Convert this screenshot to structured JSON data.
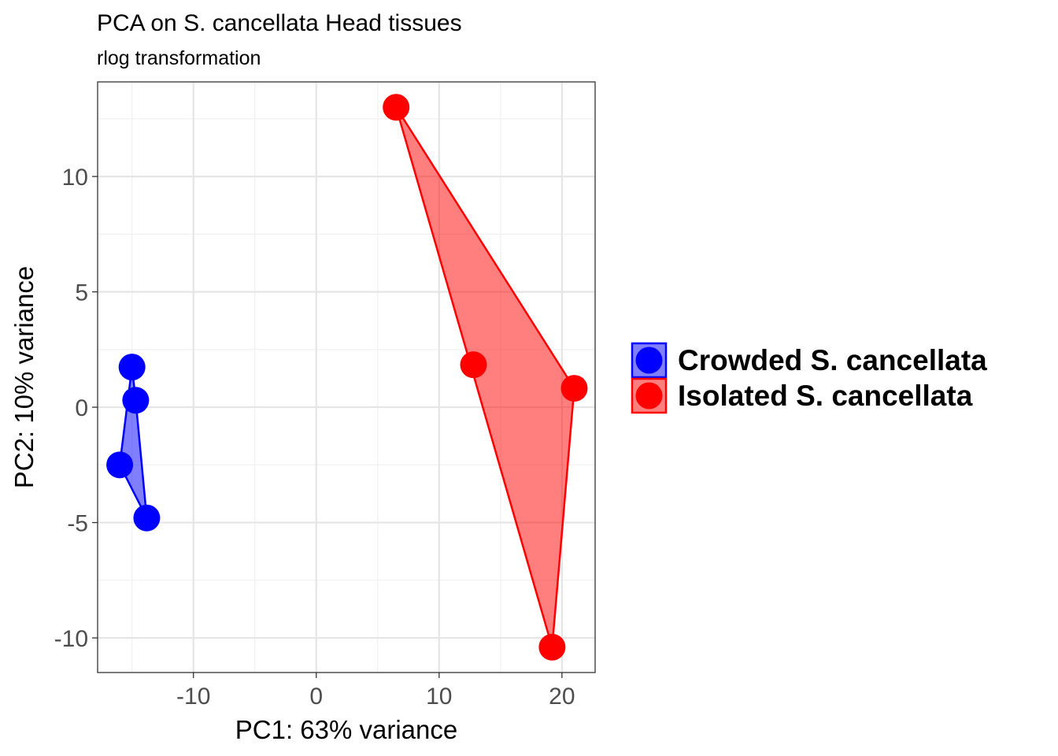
{
  "chart_data": {
    "type": "scatter",
    "title": "PCA on S. cancellata Head tissues",
    "subtitle": "rlog transformation",
    "xlabel": "PC1: 63% variance",
    "ylabel": "PC2: 10% variance",
    "xlim": [
      -17.8,
      22.7
    ],
    "ylim": [
      -11.5,
      14.1
    ],
    "xticks": [
      -10,
      0,
      10,
      20
    ],
    "yticks": [
      -10,
      -5,
      0,
      5,
      10
    ],
    "xtick_labels": [
      "-10",
      "0",
      "10",
      "20"
    ],
    "ytick_labels": [
      "-10",
      "-5",
      "0",
      "5",
      "10"
    ],
    "grid": true,
    "legend_position": "right",
    "series": [
      {
        "name": "Crowded S. cancellata",
        "color": "#0000ff",
        "x": [
          -15.0,
          -14.7,
          -16.0,
          -13.8
        ],
        "y": [
          1.74,
          0.3,
          -2.5,
          -4.8
        ]
      },
      {
        "name": "Isolated S. cancellata",
        "color": "#ff0000",
        "x": [
          6.5,
          12.8,
          21.0,
          19.2
        ],
        "y": [
          13.0,
          1.84,
          0.82,
          -10.4
        ]
      }
    ]
  }
}
